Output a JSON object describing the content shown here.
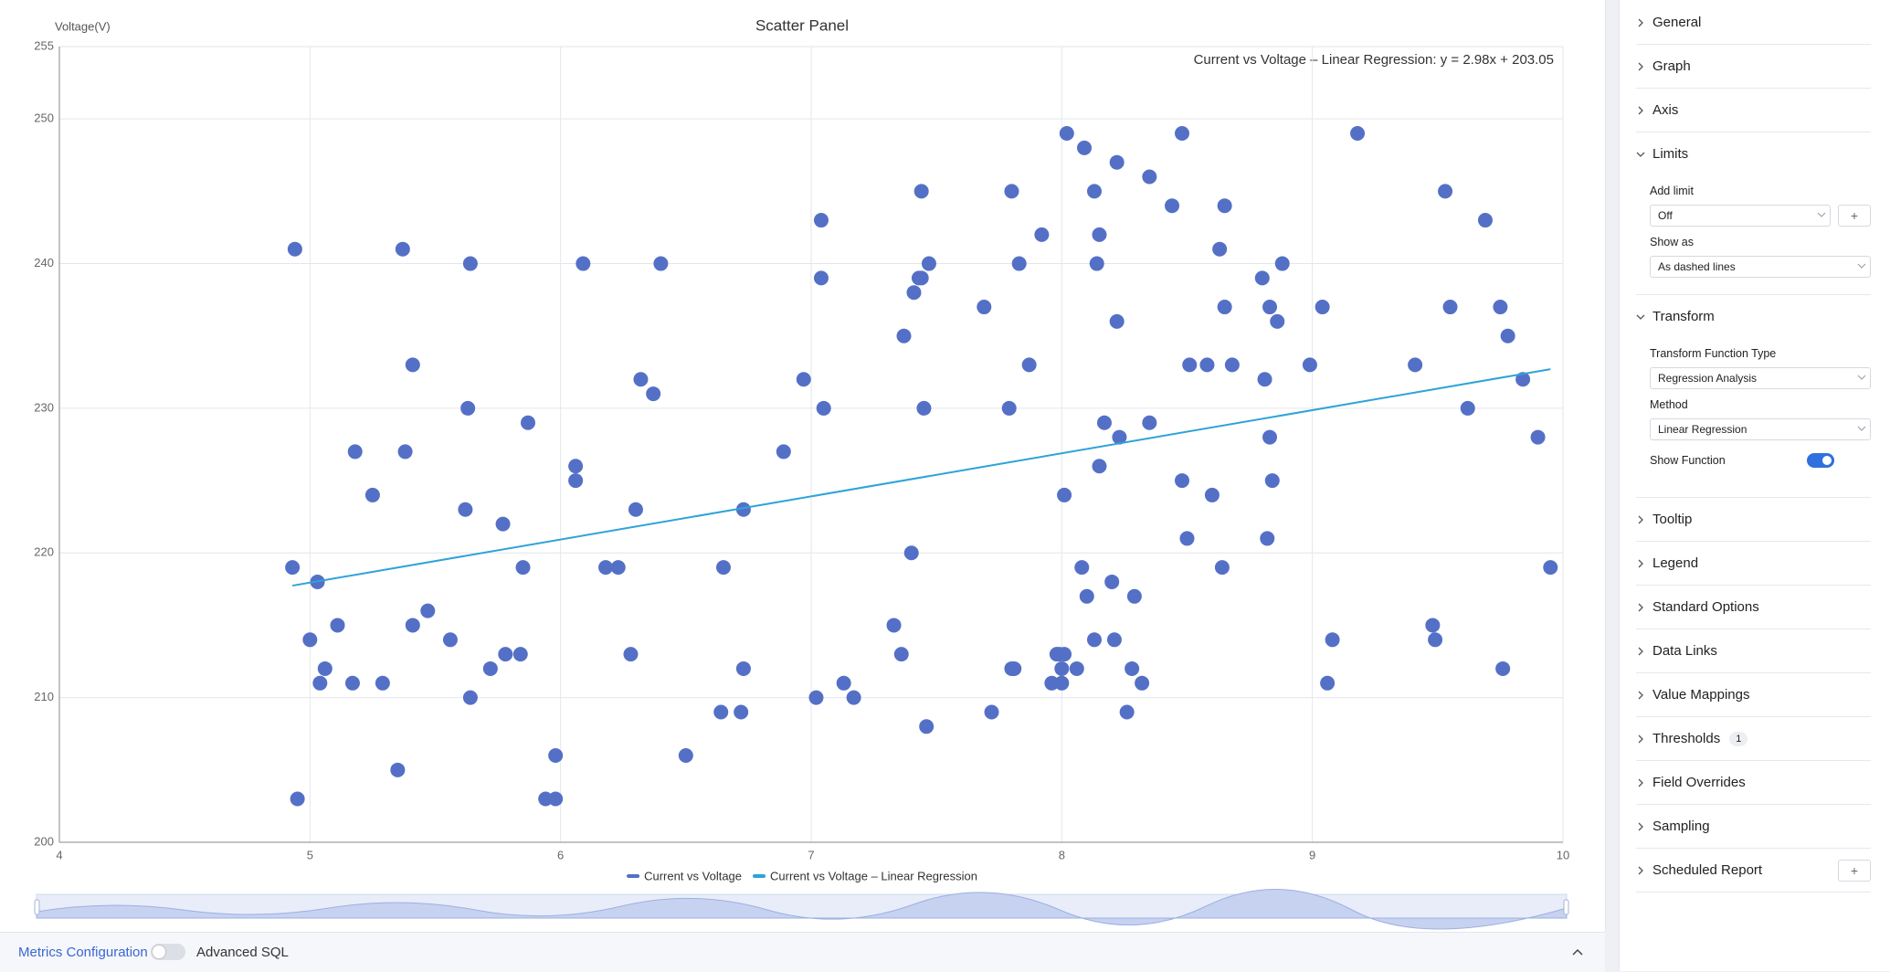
{
  "chart_data": {
    "type": "scatter",
    "title": "Scatter Panel",
    "y_label": "Voltage(V)",
    "annotation": "Current vs Voltage – Linear Regression: y = 2.98x + 203.05",
    "series": [
      {
        "name": "Current vs Voltage",
        "color": "#5470c6",
        "type": "scatter",
        "x": [
          4.94,
          4.93,
          4.95,
          5.03,
          5.0,
          5.04,
          5.06,
          5.11,
          5.17,
          5.18,
          5.25,
          5.29,
          5.35,
          5.37,
          5.38,
          5.41,
          5.41,
          5.47,
          5.56,
          5.62,
          5.63,
          5.64,
          5.64,
          5.72,
          5.77,
          5.78,
          5.84,
          5.85,
          5.87,
          5.94,
          5.98,
          5.98,
          6.06,
          6.06,
          6.09,
          6.18,
          6.23,
          6.28,
          6.3,
          6.32,
          6.37,
          6.4,
          6.5,
          6.64,
          6.65,
          6.72,
          6.73,
          6.73,
          6.89,
          6.97,
          7.02,
          7.04,
          7.04,
          7.05,
          7.13,
          7.17,
          7.33,
          7.36,
          7.37,
          7.4,
          7.41,
          7.43,
          7.44,
          7.44,
          7.45,
          7.46,
          7.47,
          7.69,
          7.72,
          7.79,
          7.8,
          7.8,
          7.81,
          7.83,
          7.87,
          7.92,
          7.96,
          7.98,
          7.99,
          8.0,
          8.0,
          8.01,
          8.01,
          8.02,
          8.06,
          8.08,
          8.09,
          8.1,
          8.13,
          8.13,
          8.14,
          8.15,
          8.15,
          8.17,
          8.2,
          8.21,
          8.22,
          8.22,
          8.23,
          8.26,
          8.28,
          8.29,
          8.32,
          8.35,
          8.35,
          8.44,
          8.48,
          8.48,
          8.5,
          8.51,
          8.58,
          8.6,
          8.63,
          8.64,
          8.65,
          8.65,
          8.68,
          8.8,
          8.81,
          8.82,
          8.83,
          8.83,
          8.84,
          8.86,
          8.88,
          8.99,
          9.04,
          9.06,
          9.08,
          9.18,
          9.41,
          9.48,
          9.49,
          9.53,
          9.55,
          9.62,
          9.69,
          9.75,
          9.76,
          9.78,
          9.84,
          9.9,
          9.95
        ],
        "values": [
          241,
          219,
          203,
          218,
          214,
          211,
          212,
          215,
          211,
          227,
          224,
          211,
          205,
          241,
          227,
          233,
          215,
          216,
          214,
          223,
          230,
          240,
          210,
          212,
          222,
          213,
          213,
          219,
          229,
          203,
          203,
          206,
          226,
          225,
          240,
          219,
          219,
          213,
          223,
          232,
          231,
          240,
          206,
          209,
          219,
          209,
          212,
          223,
          227,
          232,
          210,
          243,
          239,
          230,
          211,
          210,
          215,
          213,
          235,
          220,
          238,
          239,
          245,
          239,
          230,
          208,
          240,
          237,
          209,
          230,
          212,
          245,
          212,
          240,
          233,
          242,
          211,
          213,
          213,
          212,
          211,
          224,
          213,
          249,
          212,
          219,
          248,
          217,
          245,
          214,
          240,
          242,
          226,
          229,
          218,
          214,
          236,
          247,
          228,
          209,
          212,
          217,
          211,
          229,
          246,
          244,
          225,
          249,
          221,
          233,
          233,
          224,
          241,
          219,
          237,
          244,
          233,
          239,
          232,
          221,
          237,
          228,
          225,
          236,
          240,
          233,
          237,
          211,
          214,
          249,
          233,
          215,
          214,
          245,
          237,
          230,
          243,
          237,
          212,
          235,
          232,
          228,
          219
        ]
      },
      {
        "name": "Current vs Voltage – Linear Regression",
        "color": "#2ea3d8",
        "type": "line",
        "x": [
          4.93,
          9.95
        ],
        "values": [
          217.74,
          232.7
        ]
      }
    ],
    "xlim": [
      4,
      10
    ],
    "xticks": [
      4,
      5,
      6,
      7,
      8,
      9,
      10
    ],
    "ylim": [
      200,
      255
    ],
    "yticks": [
      200,
      210,
      220,
      230,
      240,
      250,
      255
    ],
    "grid": true,
    "legend": "bottom"
  },
  "sidebar": {
    "sections": [
      {
        "title": "General"
      },
      {
        "title": "Graph"
      },
      {
        "title": "Axis"
      },
      {
        "title": "Limits",
        "expanded": true,
        "fields": [
          {
            "label": "Add limit",
            "value": "Off",
            "add_button": true
          },
          {
            "label": "Show as",
            "value": "As dashed lines"
          }
        ]
      },
      {
        "title": "Transform",
        "expanded": true,
        "fields": [
          {
            "label": "Transform Function Type",
            "value": "Regression Analysis"
          },
          {
            "label": "Method",
            "value": "Linear Regression"
          },
          {
            "label": "Show Function",
            "on": true
          }
        ]
      },
      {
        "title": "Tooltip"
      },
      {
        "title": "Legend"
      },
      {
        "title": "Standard Options"
      },
      {
        "title": "Data Links"
      },
      {
        "title": "Value Mappings"
      },
      {
        "title": "Thresholds",
        "badge": "1"
      },
      {
        "title": "Field Overrides"
      },
      {
        "title": "Sampling"
      },
      {
        "title": "Scheduled Report",
        "add_button": true
      }
    ]
  },
  "bottom_bar": {
    "tab": "Metrics Configuration",
    "toggle_label": "Advanced SQL",
    "advanced_sql": false
  }
}
